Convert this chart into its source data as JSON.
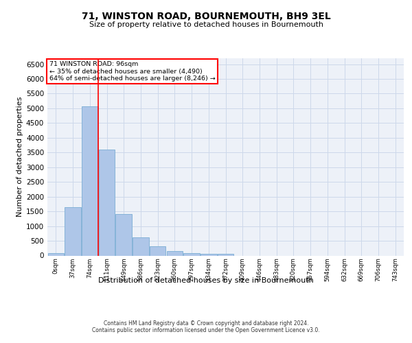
{
  "title": "71, WINSTON ROAD, BOURNEMOUTH, BH9 3EL",
  "subtitle": "Size of property relative to detached houses in Bournemouth",
  "xlabel": "Distribution of detached houses by size in Bournemouth",
  "ylabel": "Number of detached properties",
  "bar_color": "#aec6e8",
  "bar_edge_color": "#7aadd4",
  "bar_values": [
    75,
    1640,
    5080,
    3590,
    1400,
    620,
    310,
    150,
    85,
    55,
    50,
    0,
    0,
    0,
    0,
    0,
    0,
    0,
    0,
    0,
    0
  ],
  "bar_labels": [
    "0sqm",
    "37sqm",
    "74sqm",
    "111sqm",
    "149sqm",
    "186sqm",
    "223sqm",
    "260sqm",
    "297sqm",
    "334sqm",
    "372sqm",
    "409sqm",
    "446sqm",
    "483sqm",
    "520sqm",
    "557sqm",
    "594sqm",
    "632sqm",
    "669sqm",
    "706sqm",
    "743sqm"
  ],
  "ylim": [
    0,
    6700
  ],
  "yticks": [
    0,
    500,
    1000,
    1500,
    2000,
    2500,
    3000,
    3500,
    4000,
    4500,
    5000,
    5500,
    6000,
    6500
  ],
  "property_label": "71 WINSTON ROAD: 96sqm",
  "annotation_line1": "← 35% of detached houses are smaller (4,490)",
  "annotation_line2": "64% of semi-detached houses are larger (8,246) →",
  "vline_x": 2.5,
  "grid_color": "#cdd8ea",
  "bg_color": "#edf1f8",
  "footer1": "Contains HM Land Registry data © Crown copyright and database right 2024.",
  "footer2": "Contains public sector information licensed under the Open Government Licence v3.0."
}
